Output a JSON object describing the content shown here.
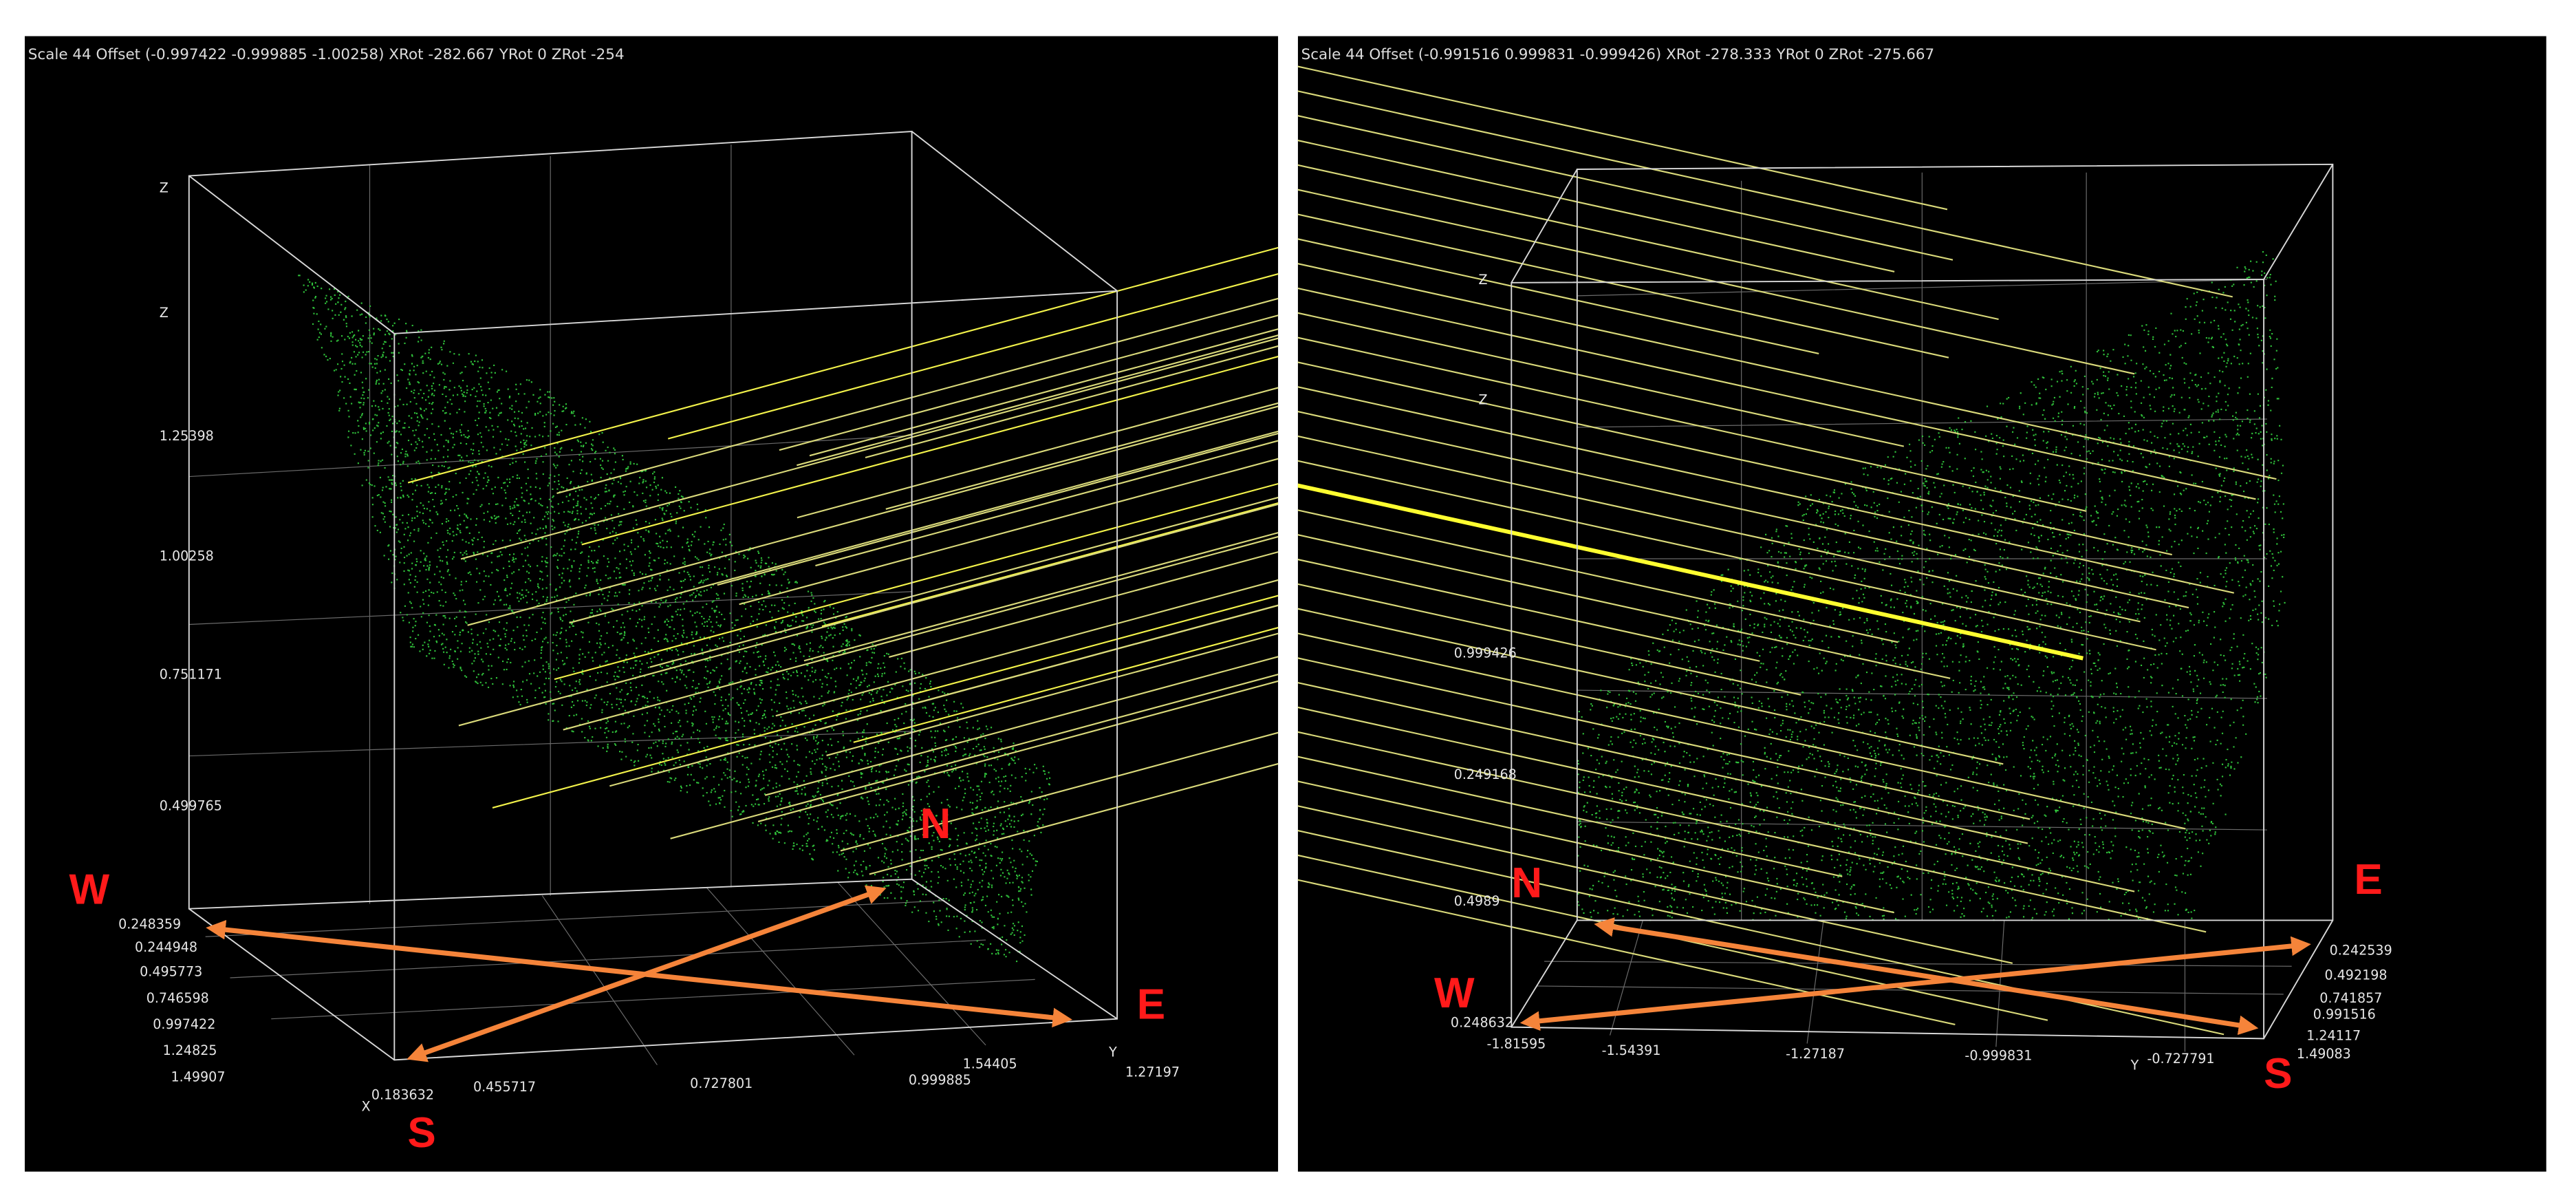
{
  "panels": [
    {
      "header": "Scale 44 Offset (-0.997422 -0.999885 -1.00258) XRot -282.667 YRot 0 ZRot -254",
      "axis_names": [
        "Z",
        "Z",
        "X",
        "Y"
      ],
      "z_labels": [
        "1.25398",
        "1.00258",
        "0.751171",
        "0.499765",
        "0.248359"
      ],
      "x_labels": [
        "0.244948",
        "0.495773",
        "0.746598",
        "0.997422",
        "1.24825",
        "1.49907",
        "0.183632"
      ],
      "y_labels": [
        "0.455717",
        "0.727801",
        "0.999885",
        "1.27197",
        "1.54405"
      ],
      "compass": [
        "W",
        "N",
        "E",
        "S"
      ]
    },
    {
      "header": "Scale 44 Offset (-0.991516 0.999831 -0.999426) XRot -278.333 YRot 0 ZRot -275.667",
      "axis_names": [
        "Z",
        "Z",
        "Y"
      ],
      "z_labels": [
        "0.999426",
        "0.249168",
        "0.4989",
        "0.248632"
      ],
      "x_labels": [
        "0.242539",
        "0.492198",
        "0.741857",
        "0.991516",
        "1.24117",
        "1.49083"
      ],
      "y_labels": [
        "-1.81595",
        "-1.54391",
        "-1.27187",
        "-0.999831",
        "-0.727791"
      ],
      "compass": [
        "N",
        "E",
        "W",
        "S"
      ]
    }
  ]
}
